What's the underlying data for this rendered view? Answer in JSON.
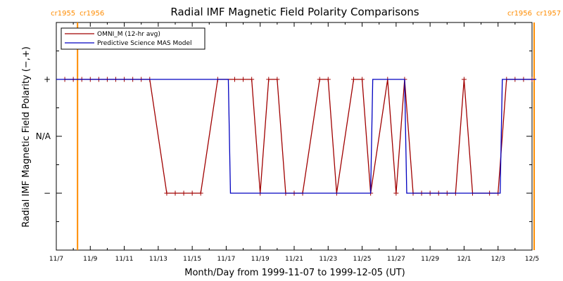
{
  "chart_data": {
    "type": "line",
    "title": "Radial IMF Magnetic Field Polarity Comparisons",
    "xlabel": "Month/Day from 1999-11-07 to 1999-12-05 (UT)",
    "ylabel": "Radial IMF Magnetic Field Polarity (−,+)",
    "x_ticks": [
      "11/7",
      "11/9",
      "11/11",
      "11/13",
      "11/15",
      "11/17",
      "11/19",
      "11/21",
      "11/23",
      "11/25",
      "11/27",
      "11/29",
      "12/1",
      "12/3",
      "12/5"
    ],
    "y_ticks": [
      "−",
      "N/A",
      "+"
    ],
    "xlim": [
      "1999-11-07",
      "1999-12-05"
    ],
    "ylim": [
      -2,
      2
    ],
    "legend_position": "top-left",
    "carrington_markers": [
      {
        "date": "1999-11-08T06:00",
        "left": "cr1955",
        "right": "cr1956",
        "color": "#ff8c00"
      },
      {
        "date": "1999-12-05T03:00",
        "left": "cr1956",
        "right": "cr1957",
        "color": "#ff8c00"
      }
    ],
    "series": [
      {
        "name": "OMNI_M (12-hr avg)",
        "color": "#a00000",
        "markers": true,
        "points": [
          [
            "1999-11-07T12:00",
            1
          ],
          [
            "1999-11-08T00:00",
            1
          ],
          [
            "1999-11-08T12:00",
            1
          ],
          [
            "1999-11-09T00:00",
            1
          ],
          [
            "1999-11-09T12:00",
            1
          ],
          [
            "1999-11-10T00:00",
            1
          ],
          [
            "1999-11-10T12:00",
            1
          ],
          [
            "1999-11-11T00:00",
            1
          ],
          [
            "1999-11-11T12:00",
            1
          ],
          [
            "1999-11-12T00:00",
            1
          ],
          [
            "1999-11-12T12:00",
            1
          ],
          [
            "1999-11-13T12:00",
            -1
          ],
          [
            "1999-11-14T00:00",
            -1
          ],
          [
            "1999-11-14T12:00",
            -1
          ],
          [
            "1999-11-15T00:00",
            -1
          ],
          [
            "1999-11-15T12:00",
            -1
          ],
          [
            "1999-11-16T12:00",
            1
          ],
          [
            "1999-11-17T12:00",
            1
          ],
          [
            "1999-11-18T00:00",
            1
          ],
          [
            "1999-11-18T12:00",
            1
          ],
          [
            "1999-11-19T00:00",
            -1
          ],
          [
            "1999-11-19T12:00",
            1
          ],
          [
            "1999-11-20T00:00",
            1
          ],
          [
            "1999-11-20T12:00",
            -1
          ],
          [
            "1999-11-21T00:00",
            -1
          ],
          [
            "1999-11-21T12:00",
            -1
          ],
          [
            "1999-11-22T12:00",
            1
          ],
          [
            "1999-11-23T00:00",
            1
          ],
          [
            "1999-11-23T12:00",
            -1
          ],
          [
            "1999-11-24T12:00",
            1
          ],
          [
            "1999-11-25T00:00",
            1
          ],
          [
            "1999-11-25T12:00",
            -1
          ],
          [
            "1999-11-26T12:00",
            1
          ],
          [
            "1999-11-27T00:00",
            -1
          ],
          [
            "1999-11-27T12:00",
            1
          ],
          [
            "1999-11-28T00:00",
            -1
          ],
          [
            "1999-11-28T12:00",
            -1
          ],
          [
            "1999-11-29T00:00",
            -1
          ],
          [
            "1999-11-29T12:00",
            -1
          ],
          [
            "1999-11-30T00:00",
            -1
          ],
          [
            "1999-11-30T12:00",
            -1
          ],
          [
            "1999-12-01T00:00",
            1
          ],
          [
            "1999-12-01T12:00",
            -1
          ],
          [
            "1999-12-02T12:00",
            -1
          ],
          [
            "1999-12-03T00:00",
            -1
          ],
          [
            "1999-12-03T12:00",
            1
          ],
          [
            "1999-12-04T00:00",
            1
          ],
          [
            "1999-12-04T12:00",
            1
          ],
          [
            "1999-12-05T00:00",
            1
          ]
        ]
      },
      {
        "name": "Predictive Science MAS Model",
        "color": "#0000c0",
        "markers": false,
        "points": [
          [
            "1999-11-07T00:00",
            1
          ],
          [
            "1999-11-17T03:00",
            1
          ],
          [
            "1999-11-17T06:00",
            -1
          ],
          [
            "1999-11-25T12:00",
            -1
          ],
          [
            "1999-11-25T15:00",
            1
          ],
          [
            "1999-11-27T12:00",
            1
          ],
          [
            "1999-11-27T15:00",
            -1
          ],
          [
            "1999-12-03T03:00",
            -1
          ],
          [
            "1999-12-03T06:00",
            1
          ],
          [
            "1999-12-05T06:00",
            1
          ]
        ]
      }
    ]
  }
}
